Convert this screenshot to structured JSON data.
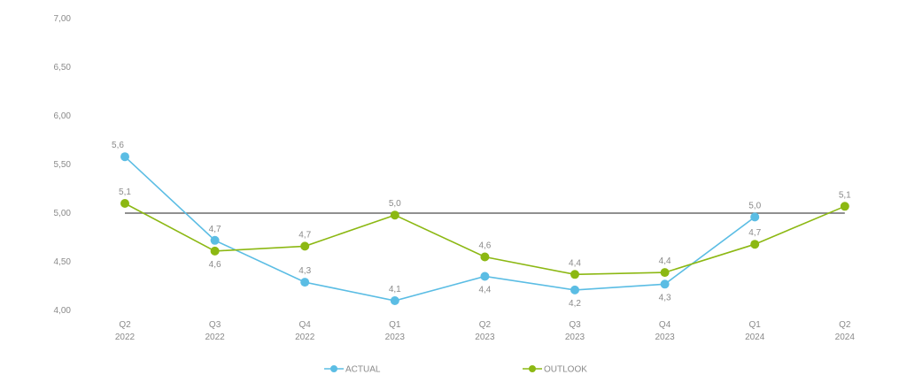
{
  "chart_data": {
    "type": "line",
    "title": "",
    "xlabel": "",
    "ylabel": "",
    "ylim": [
      4.0,
      7.0
    ],
    "yticks": [
      "7,00",
      "6,50",
      "6,00",
      "5,50",
      "5,00",
      "4,50",
      "4,00"
    ],
    "ytick_values": [
      7.0,
      6.5,
      6.0,
      5.5,
      5.0,
      4.5,
      4.0
    ],
    "categories": [
      [
        "Q2",
        "2022"
      ],
      [
        "Q3",
        "2022"
      ],
      [
        "Q4",
        "2022"
      ],
      [
        "Q1",
        "2023"
      ],
      [
        "Q2",
        "2023"
      ],
      [
        "Q3",
        "2023"
      ],
      [
        "Q4",
        "2023"
      ],
      [
        "Q1",
        "2024"
      ],
      [
        "Q2",
        "2024"
      ]
    ],
    "reference_line": {
      "value": 5.0,
      "color": "#6b6b6b"
    },
    "series": [
      {
        "name": "ACTUAL",
        "color": "#5bbde4",
        "values": [
          5.58,
          4.72,
          4.29,
          4.1,
          4.35,
          4.21,
          4.27,
          4.96,
          null
        ],
        "labels": [
          "5,6",
          "4,7",
          "4,3",
          "4,1",
          "4,4",
          "4,2",
          "4,3",
          "5,0",
          null
        ],
        "label_pos": [
          "above",
          "above",
          "above",
          "above",
          "below",
          "below",
          "below",
          "above",
          null
        ]
      },
      {
        "name": "OUTLOOK",
        "color": "#8cb813",
        "values": [
          5.1,
          4.61,
          4.66,
          4.98,
          4.55,
          4.37,
          4.39,
          4.68,
          5.07
        ],
        "labels": [
          "5,1",
          "4,6",
          "4,7",
          "5,0",
          "4,6",
          "4,4",
          "4,4",
          "4,7",
          "5,1"
        ],
        "label_pos": [
          "above",
          "below",
          "above",
          "above",
          "above",
          "above",
          "above",
          "above",
          "above"
        ]
      }
    ],
    "grid": false,
    "legend": "bottom-center"
  }
}
